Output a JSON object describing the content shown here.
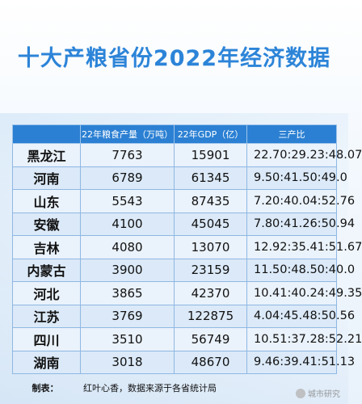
{
  "title": "十大产粮省份2022年经济数据",
  "table": {
    "headers": [
      "",
      "22年粮食产量（万吨）",
      "22年GDP（亿）",
      "三产比"
    ],
    "rows": [
      {
        "province": "黑龙江",
        "grain": "7763",
        "gdp": "15901",
        "ratio": "22.70:29.23:48.07"
      },
      {
        "province": "河南",
        "grain": "6789",
        "gdp": "61345",
        "ratio": "9.50:41.50:49.0"
      },
      {
        "province": "山东",
        "grain": "5543",
        "gdp": "87435",
        "ratio": "7.20:40.04:52.76"
      },
      {
        "province": "安徽",
        "grain": "4100",
        "gdp": "45045",
        "ratio": "7.80:41.26:50.94"
      },
      {
        "province": "吉林",
        "grain": "4080",
        "gdp": "13070",
        "ratio": "12.92:35.41:51.67"
      },
      {
        "province": "内蒙古",
        "grain": "3900",
        "gdp": "23159",
        "ratio": "11.50:48.50:40.0"
      },
      {
        "province": "河北",
        "grain": "3865",
        "gdp": "42370",
        "ratio": "10.41:40.24:49.35"
      },
      {
        "province": "江苏",
        "grain": "3769",
        "gdp": "122875",
        "ratio": "4.04:45.48:50.56"
      },
      {
        "province": "四川",
        "grain": "3510",
        "gdp": "56749",
        "ratio": "10.51:37.28:52.21"
      },
      {
        "province": "湖南",
        "grain": "3018",
        "gdp": "48670",
        "ratio": "9.46:39.41:51.13"
      }
    ]
  },
  "footer": {
    "label": "制表：",
    "text": "红叶心香，数据来源于各省统计局"
  },
  "watermark": {
    "text": "城市研究"
  }
}
